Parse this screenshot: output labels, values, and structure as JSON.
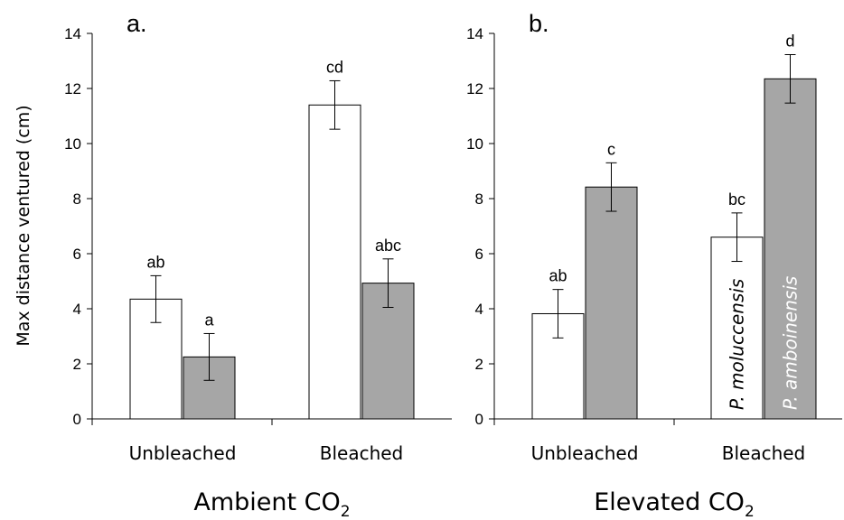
{
  "chart_data": {
    "type": "bar",
    "ylabel": "Max distance ventured (cm)",
    "ylim": [
      0,
      14
    ],
    "yticks": [
      "0",
      "2",
      "4",
      "6",
      "8",
      "10",
      "12",
      "14"
    ],
    "series_colors": [
      "#ffffff",
      "#a6a6a6"
    ],
    "series_labels": [
      "P. moluccensis",
      "P. amboinensis"
    ],
    "panels": [
      {
        "label": "a.",
        "group_label": "Ambient CO",
        "group_sub": "2",
        "categories": [
          "Unbleached",
          "Bleached"
        ],
        "series": [
          {
            "values": [
              4.35,
              11.4
            ],
            "errors": [
              0.85,
              0.88
            ],
            "letters": [
              "ab",
              "cd"
            ]
          },
          {
            "values": [
              2.25,
              4.93
            ],
            "errors": [
              0.85,
              0.88
            ],
            "letters": [
              "a",
              "abc"
            ]
          }
        ]
      },
      {
        "label": "b.",
        "group_label": "Elevated CO",
        "group_sub": "2",
        "categories": [
          "Unbleached",
          "Bleached"
        ],
        "series": [
          {
            "values": [
              3.82,
              6.6
            ],
            "errors": [
              0.88,
              0.88
            ],
            "letters": [
              "ab",
              "bc"
            ]
          },
          {
            "values": [
              8.42,
              12.35
            ],
            "errors": [
              0.88,
              0.88
            ],
            "letters": [
              "c",
              "d"
            ]
          }
        ]
      }
    ]
  }
}
